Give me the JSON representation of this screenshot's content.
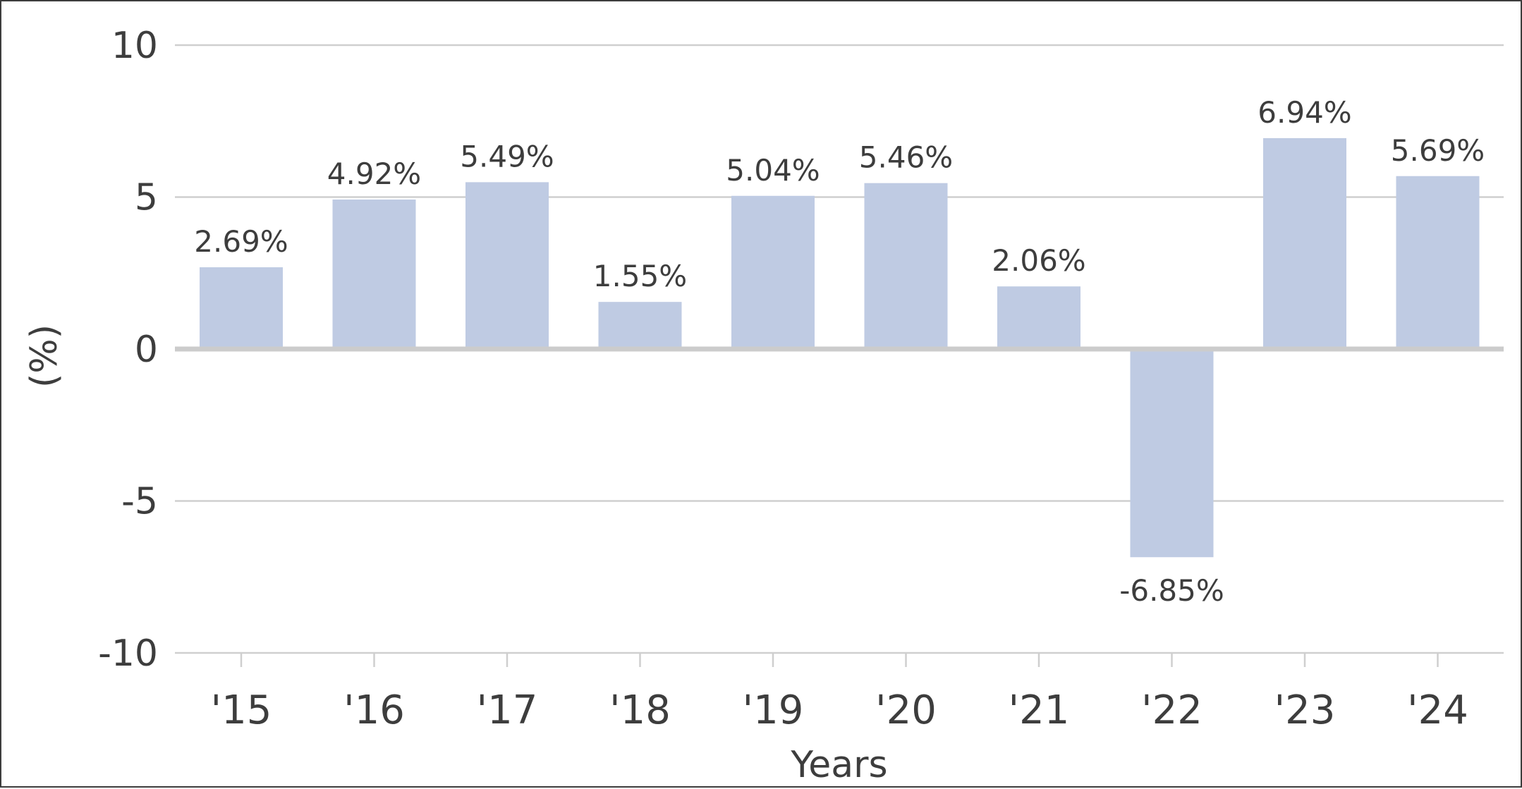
{
  "chart_data": {
    "type": "bar",
    "categories": [
      "'15",
      "'16",
      "'17",
      "'18",
      "'19",
      "'20",
      "'21",
      "'22",
      "'23",
      "'24"
    ],
    "values": [
      2.69,
      4.92,
      5.49,
      1.55,
      5.04,
      5.46,
      2.06,
      -6.85,
      6.94,
      5.69
    ],
    "data_labels": [
      "2.69%",
      "4.92%",
      "5.49%",
      "1.55%",
      "5.04%",
      "5.46%",
      "2.06%",
      "-6.85%",
      "6.94%",
      "5.69%"
    ],
    "xlabel": "Years",
    "ylabel": "(%)",
    "ylim": [
      -10,
      10
    ],
    "yticks": [
      10,
      5,
      0,
      -5,
      -10
    ],
    "grid": true,
    "bar_color": "#bfcbe3",
    "zero_line_color": "#cccccc",
    "grid_color": "#cfcfcf",
    "text_color": "#3d3d3d"
  }
}
